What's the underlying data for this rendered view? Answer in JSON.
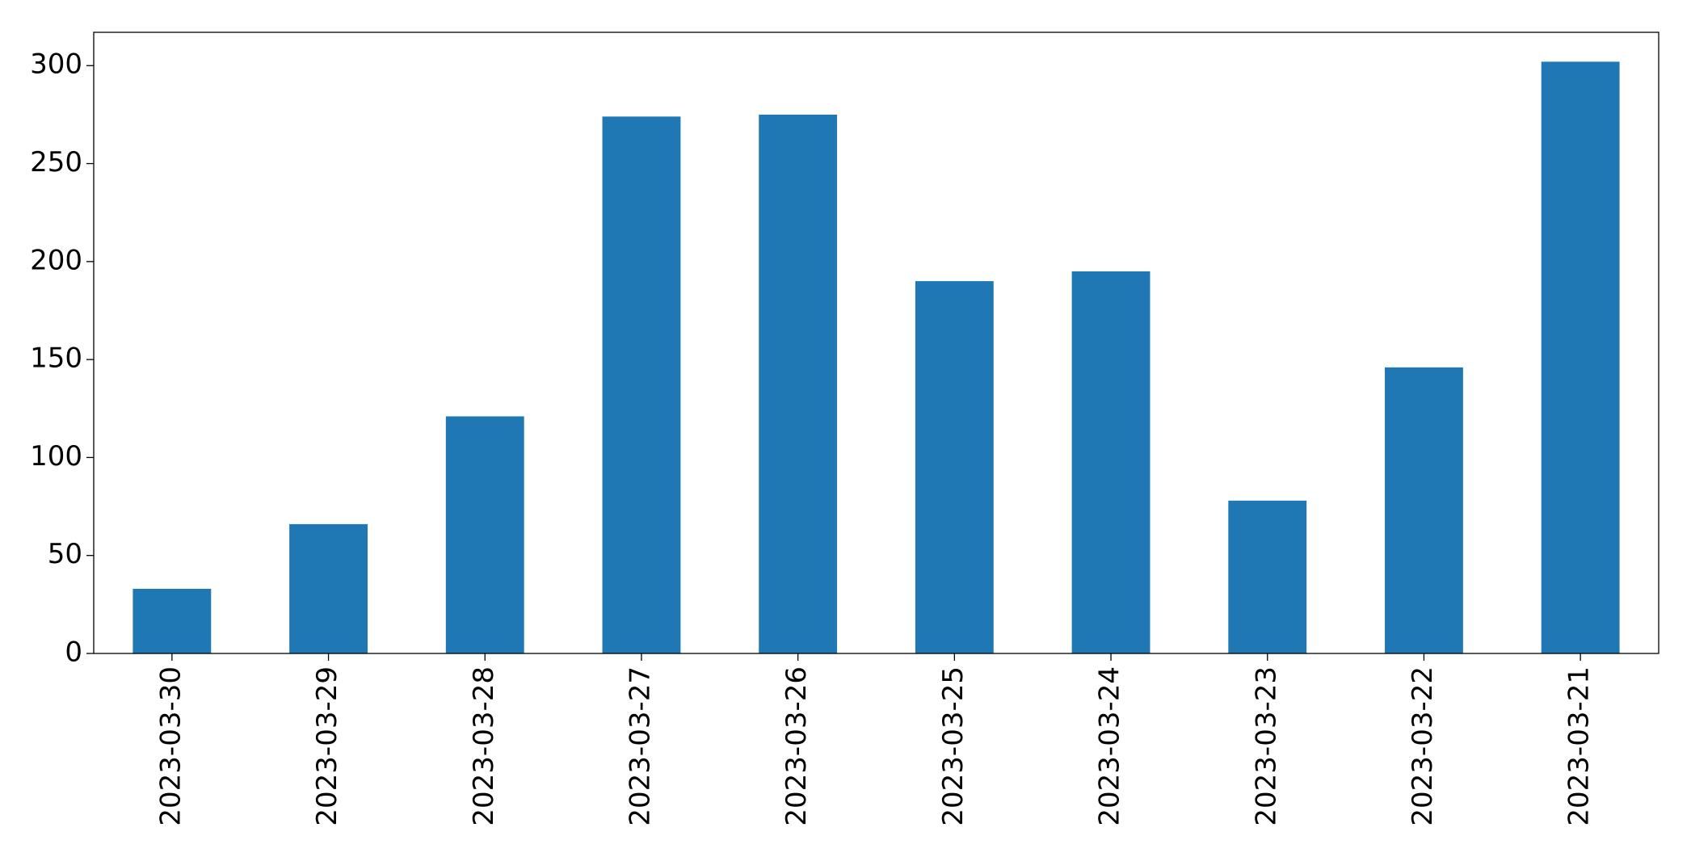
{
  "chart_data": {
    "type": "bar",
    "categories": [
      "2023-03-30",
      "2023-03-29",
      "2023-03-28",
      "2023-03-27",
      "2023-03-26",
      "2023-03-25",
      "2023-03-24",
      "2023-03-23",
      "2023-03-22",
      "2023-03-21"
    ],
    "values": [
      33,
      66,
      121,
      274,
      275,
      190,
      195,
      78,
      146,
      302
    ],
    "color": "#1f77b4",
    "ylim": [
      0,
      317
    ],
    "yticks": [
      0,
      50,
      100,
      150,
      200,
      250,
      300
    ],
    "grid": false
  }
}
